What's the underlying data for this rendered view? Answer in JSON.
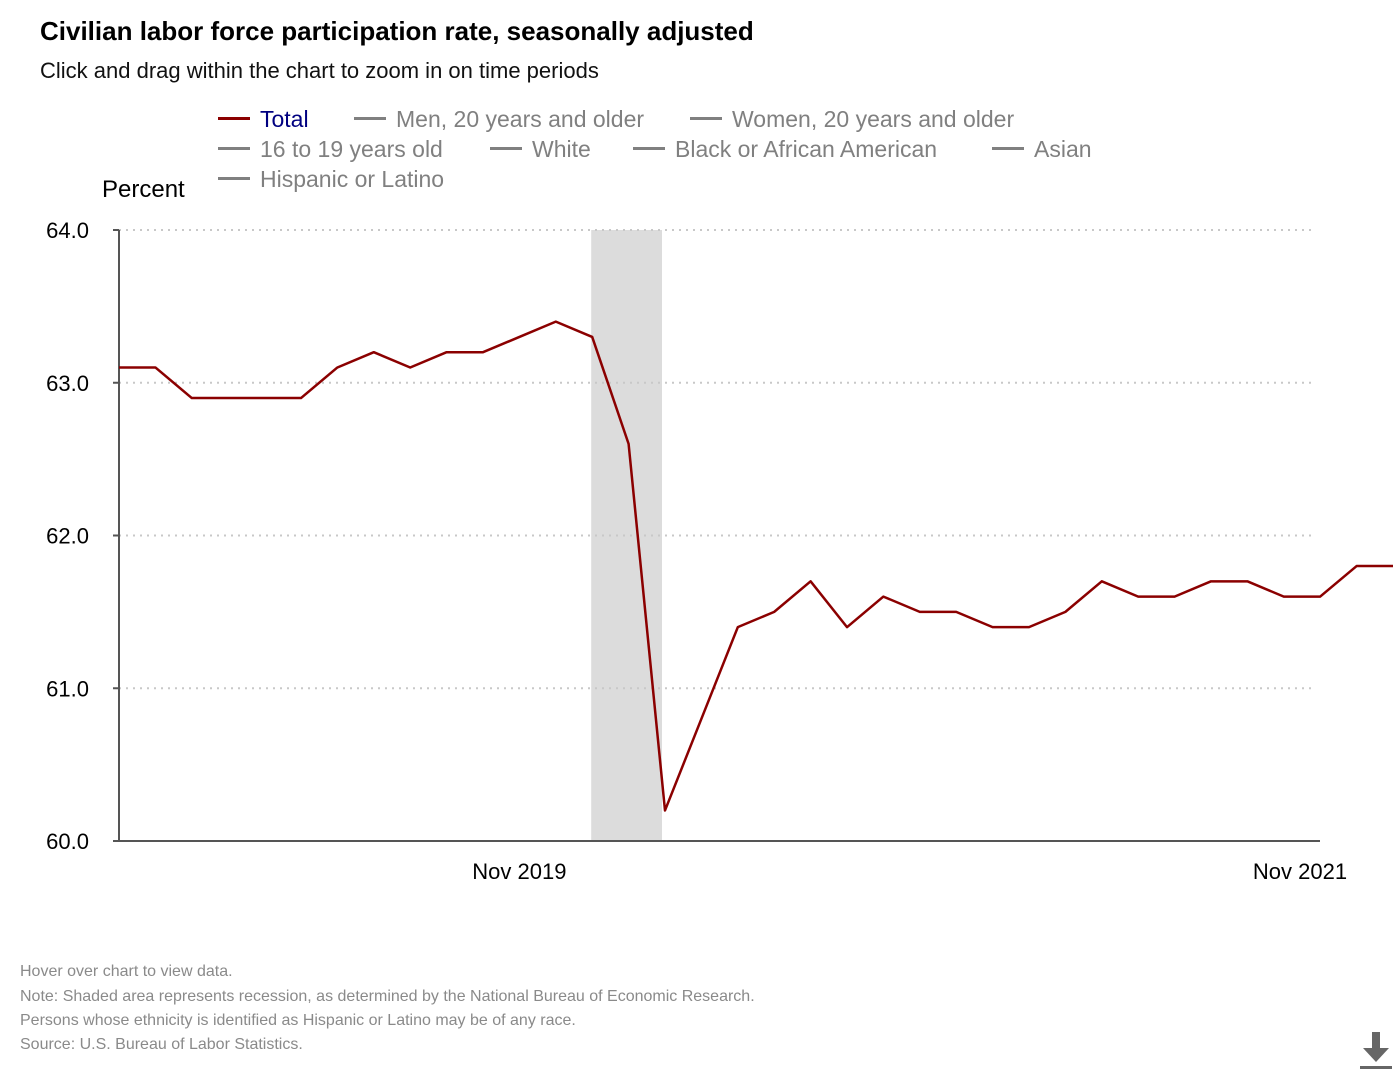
{
  "title": "Civilian labor force participation rate, seasonally adjusted",
  "subtitle": "Click and drag within the chart to zoom in on time periods",
  "legend": [
    {
      "label": "Total",
      "active": true
    },
    {
      "label": "Men, 20 years and older",
      "active": false
    },
    {
      "label": "Women, 20 years and older",
      "active": false
    },
    {
      "label": "16 to 19 years old",
      "active": false
    },
    {
      "label": "White",
      "active": false
    },
    {
      "label": "Black or African American",
      "active": false
    },
    {
      "label": "Asian",
      "active": false
    },
    {
      "label": "Hispanic or Latino",
      "active": false
    }
  ],
  "colors": {
    "total": "#8b0000",
    "inactive": "#808080",
    "active_label": "#000080",
    "recession": "#dcdcdc",
    "grid": "#c8c8c8"
  },
  "chart_data": {
    "type": "line",
    "title": "Civilian labor force participation rate, seasonally adjusted",
    "ylabel": "Percent",
    "xlabel": "",
    "ylim": [
      60.0,
      64.0
    ],
    "yticks": [
      "64.0",
      "63.0",
      "62.0",
      "61.0",
      "60.0"
    ],
    "ytick_values": [
      64,
      63,
      62,
      61,
      60
    ],
    "xticks": [
      {
        "label": "Nov 2019",
        "index": 11
      },
      {
        "label": "Nov 2021",
        "index": 35
      }
    ],
    "recession": {
      "start_index": 13,
      "end_index": 15,
      "label": "Recession"
    },
    "grid": true,
    "series": [
      {
        "name": "Total",
        "start": "Dec 2018",
        "x": [
          "Dec 2018",
          "Jan 2019",
          "Feb 2019",
          "Mar 2019",
          "Apr 2019",
          "May 2019",
          "Jun 2019",
          "Jul 2019",
          "Aug 2019",
          "Sep 2019",
          "Oct 2019",
          "Nov 2019",
          "Dec 2019",
          "Jan 2020",
          "Feb 2020",
          "Mar 2020",
          "Apr 2020",
          "May 2020",
          "Jun 2020",
          "Jul 2020",
          "Aug 2020",
          "Sep 2020",
          "Oct 2020",
          "Nov 2020",
          "Dec 2020",
          "Jan 2021",
          "Feb 2021",
          "Mar 2021",
          "Apr 2021",
          "May 2021",
          "Jun 2021",
          "Jul 2021",
          "Aug 2021",
          "Sep 2021",
          "Oct 2021",
          "Nov 2021"
        ],
        "values": [
          63.1,
          63.1,
          62.9,
          62.9,
          62.9,
          62.9,
          63.1,
          63.2,
          63.1,
          63.2,
          63.2,
          63.3,
          63.4,
          63.3,
          62.6,
          60.2,
          60.8,
          61.4,
          61.5,
          61.7,
          61.4,
          61.6,
          61.5,
          61.5,
          61.4,
          61.4,
          61.5,
          61.7,
          61.6,
          61.6,
          61.7,
          61.7,
          61.6,
          61.6,
          61.8,
          61.8
        ]
      }
    ]
  },
  "footnotes": [
    "Hover over chart to view data.",
    "Note: Shaded area represents recession, as determined by the National Bureau of Economic Research.",
    "Persons whose ethnicity is identified as Hispanic or Latino may be of any race.",
    "Source: U.S. Bureau of Labor Statistics."
  ],
  "download_icon": "download-icon"
}
